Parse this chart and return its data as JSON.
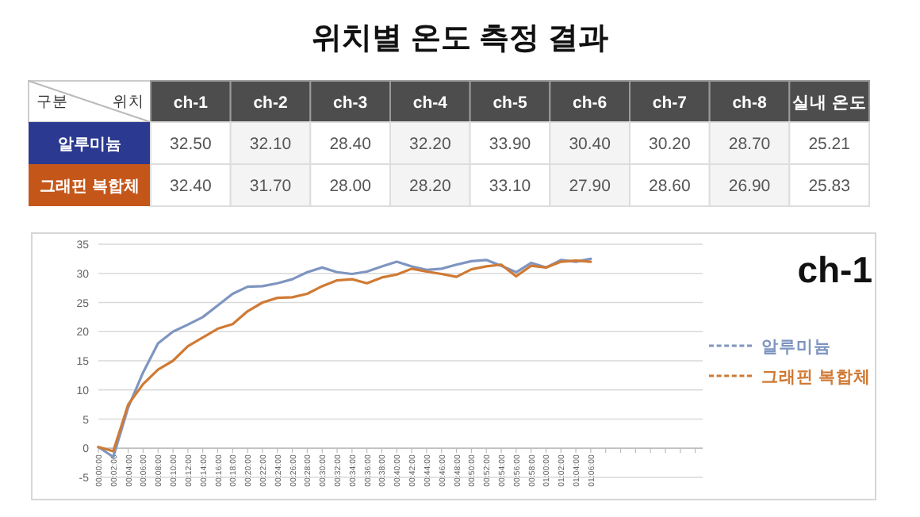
{
  "chart_data": [
    {
      "type": "other",
      "title": "위치별 온도 측정 결과",
      "annotations": [
        "구분",
        "위치"
      ],
      "categories": [
        "ch-1",
        "ch-2",
        "ch-3",
        "ch-4",
        "ch-5",
        "ch-6",
        "ch-7",
        "ch-8",
        "실내 온도"
      ],
      "y_categories": [
        "알루미늄",
        "그래핀 복합체"
      ],
      "cell_labels": [
        [
          "32.50",
          "32.10",
          "28.40",
          "32.20",
          "33.90",
          "30.40",
          "30.20",
          "28.70",
          "25.21"
        ],
        [
          "32.40",
          "31.70",
          "28.00",
          "28.20",
          "33.10",
          "27.90",
          "28.60",
          "26.90",
          "25.83"
        ]
      ]
    },
    {
      "type": "line",
      "annotations": [
        "ch-1"
      ],
      "categories": [
        "00:00:00",
        "00:02:00",
        "00:04:00",
        "00:06:00",
        "00:08:00",
        "00:10:00",
        "00:12:00",
        "00:14:00",
        "00:16:00",
        "00:18:00",
        "00:20:00",
        "00:22:00",
        "00:24:00",
        "00:26:00",
        "00:28:00",
        "00:30:00",
        "00:32:00",
        "00:34:00",
        "00:36:00",
        "00:38:00",
        "00:40:00",
        "00:42:00",
        "00:44:00",
        "00:46:00",
        "00:48:00",
        "00:50:00",
        "00:52:00",
        "00:54:00",
        "00:56:00",
        "00:58:00",
        "01:00:00",
        "01:02:00",
        "01:04:00",
        "01:06:00",
        null,
        null,
        null,
        null,
        null,
        null,
        null
      ],
      "series": [
        {
          "name": "알루미늄",
          "color": "#7f95c0",
          "values": [
            0.2,
            -1.5,
            7,
            13,
            18,
            20,
            21.2,
            22.5,
            24.5,
            26.5,
            27.7,
            27.8,
            28.3,
            29,
            30.2,
            31,
            30.2,
            29.9,
            30.3,
            31.2,
            32,
            31.2,
            30.6,
            30.8,
            31.5,
            32.1,
            32.3,
            31.3,
            30.2,
            31.8,
            31,
            32.3,
            32,
            32.5,
            null,
            null,
            null,
            null,
            null,
            null,
            null
          ]
        },
        {
          "name": "그래핀 복합체",
          "color": "#d07a34",
          "values": [
            0.2,
            -0.5,
            7.5,
            11,
            13.5,
            15,
            17.5,
            19,
            20.5,
            21.3,
            23.5,
            25,
            25.8,
            25.9,
            26.5,
            27.8,
            28.8,
            29,
            28.3,
            29.3,
            29.8,
            30.8,
            30.3,
            29.9,
            29.4,
            30.7,
            31.2,
            31.5,
            29.5,
            31.3,
            31,
            32,
            32.2,
            32,
            null,
            null,
            null,
            null,
            null,
            null,
            null
          ]
        }
      ],
      "ylim": [
        -5,
        35
      ],
      "yticks": [
        -5,
        0,
        5,
        10,
        15,
        20,
        25,
        30,
        35
      ],
      "grid": "y",
      "legend": "right"
    }
  ]
}
